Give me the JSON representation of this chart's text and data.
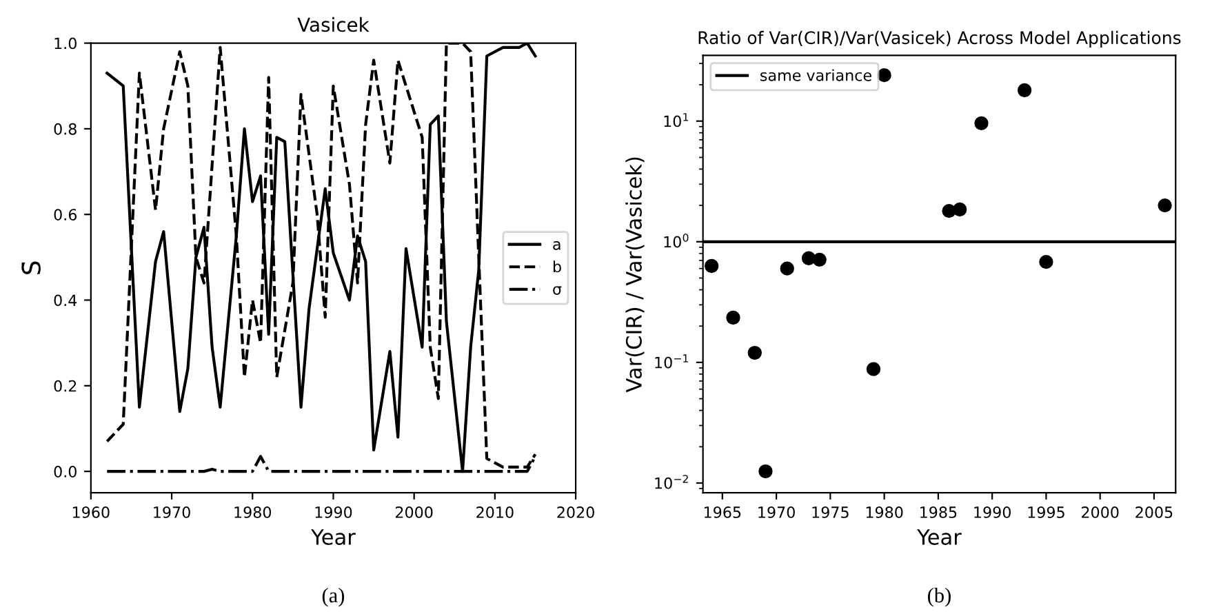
{
  "chart_data": [
    {
      "type": "line",
      "title": "Vasicek",
      "xlabel": "Year",
      "ylabel": "S̄",
      "xlim": [
        1960,
        2020
      ],
      "ylim": [
        -0.05,
        1.0
      ],
      "xticks": [
        1960,
        1970,
        1980,
        1990,
        2000,
        2010,
        2020
      ],
      "yticks": [
        {
          "value": 0,
          "label": "0.0"
        },
        0.2,
        0.4,
        0.6,
        0.8,
        {
          "value": 1,
          "label": "1.0"
        }
      ],
      "grid": false,
      "legend": "right",
      "marker": "none",
      "annotations": [
        "(a)"
      ],
      "series": [
        {
          "name": "a",
          "color": "#000000",
          "line_style": "solid",
          "x": [
            1962,
            1964,
            1966,
            1968,
            1969,
            1971,
            1972,
            1973,
            1974,
            1975,
            1976,
            1978,
            1979,
            1980,
            1981,
            1982,
            1983,
            1984,
            1986,
            1987,
            1989,
            1990,
            1992,
            1993,
            1994,
            1995,
            1997,
            1998,
            1999,
            2001,
            2002,
            2003,
            2004,
            2006,
            2007,
            2008,
            2009,
            2011,
            2013,
            2014,
            2015
          ],
          "values": [
            0.93,
            0.9,
            0.15,
            0.49,
            0.56,
            0.14,
            0.24,
            0.5,
            0.57,
            0.29,
            0.15,
            0.55,
            0.8,
            0.63,
            0.69,
            0.32,
            0.78,
            0.77,
            0.15,
            0.38,
            0.66,
            0.51,
            0.4,
            0.55,
            0.49,
            0.05,
            0.28,
            0.08,
            0.52,
            0.29,
            0.81,
            0.83,
            0.35,
            0.0,
            0.29,
            0.47,
            0.97,
            0.99,
            0.99,
            1.0,
            0.97
          ]
        },
        {
          "name": "b",
          "color": "#000000",
          "line_style": "dashed",
          "x": [
            1962,
            1964,
            1966,
            1968,
            1969,
            1971,
            1972,
            1973,
            1974,
            1976,
            1978,
            1979,
            1980,
            1981,
            1982,
            1983,
            1985,
            1986,
            1988,
            1989,
            1990,
            1992,
            1993,
            1994,
            1995,
            1997,
            1998,
            2000,
            2001,
            2002,
            2003,
            2004,
            2006,
            2007,
            2008,
            2009,
            2011,
            2013,
            2014,
            2015
          ],
          "values": [
            0.07,
            0.11,
            0.93,
            0.61,
            0.8,
            0.98,
            0.9,
            0.5,
            0.44,
            0.99,
            0.55,
            0.22,
            0.4,
            0.3,
            0.92,
            0.22,
            0.44,
            0.88,
            0.6,
            0.36,
            0.9,
            0.67,
            0.44,
            0.81,
            0.96,
            0.72,
            0.96,
            0.84,
            0.78,
            0.29,
            0.17,
            1.0,
            1.0,
            0.98,
            0.5,
            0.03,
            0.01,
            0.01,
            0.01,
            0.04
          ]
        },
        {
          "name": "σ",
          "color": "#000000",
          "line_style": "dashdot",
          "x": [
            1962,
            1974,
            1975,
            1976,
            1980,
            1981,
            1982,
            2014,
            2015
          ],
          "values": [
            0.0,
            0.0,
            0.005,
            0.0,
            0.0,
            0.035,
            0.0,
            0.0,
            0.035
          ]
        }
      ]
    },
    {
      "type": "scatter",
      "title": "Ratio of Var(CIR)/Var(Vasicek) Across Model Applications",
      "xlabel": "Year",
      "ylabel": "Var(CIR) / Var(Vasicek)",
      "log": "y",
      "xlim": [
        1963.2,
        2007
      ],
      "ylim": [
        0.0083,
        35
      ],
      "xticks": [
        1965,
        1970,
        1975,
        1980,
        1985,
        1990,
        1995,
        2000,
        2005
      ],
      "yticks": [
        {
          "value": 0.01,
          "label": "10$^{−2}$"
        },
        {
          "value": 0.1,
          "label": "10$^{−1}$"
        },
        {
          "value": 1,
          "label": "10$^{0}$"
        },
        {
          "value": 10,
          "label": "10$^{1}$"
        }
      ],
      "grid": false,
      "legend": "top left",
      "marker": "circle",
      "annotations": [
        "(b)"
      ],
      "ref_lines": [
        {
          "axis": "y",
          "value": 1,
          "label": "same variance",
          "color": "#000000",
          "line_style": "solid"
        }
      ],
      "series": [
        {
          "color": "#000000",
          "x": [
            1964,
            1966,
            1968,
            1969,
            1971,
            1973,
            1974,
            1979,
            1980,
            1986,
            1987,
            1989,
            1993,
            1995,
            2006
          ],
          "values": [
            0.63,
            0.235,
            0.12,
            0.0125,
            0.6,
            0.73,
            0.71,
            0.088,
            24,
            1.8,
            1.85,
            9.6,
            18,
            0.68,
            2.0
          ]
        }
      ]
    }
  ]
}
